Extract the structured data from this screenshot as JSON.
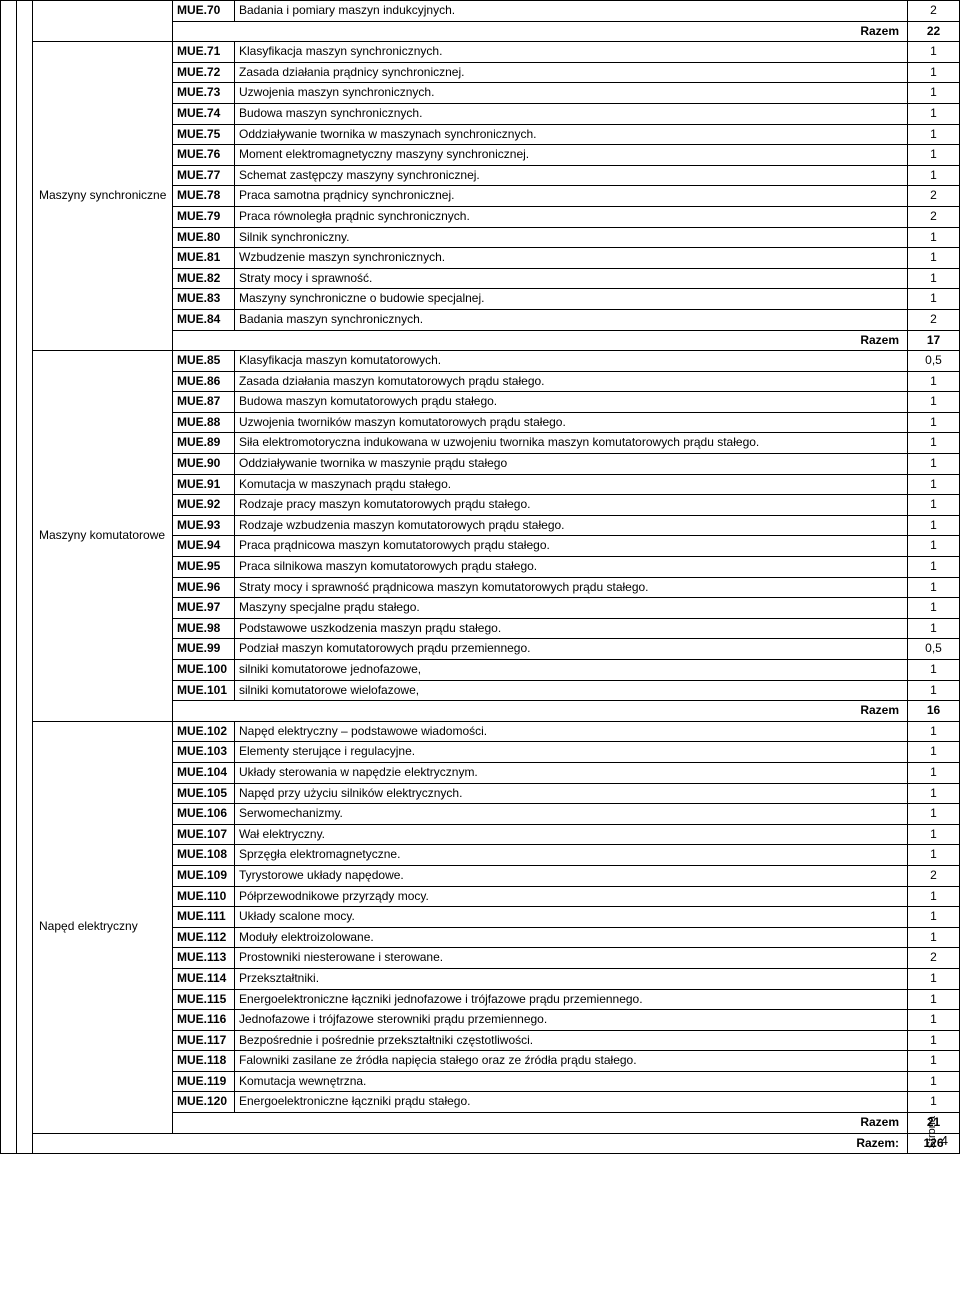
{
  "sections": [
    {
      "category": "",
      "rows": [
        {
          "code": "MUE.70",
          "desc": "Badania i pomiary maszyn indukcyjnych.",
          "val": "2"
        }
      ],
      "footer": {
        "label": "Razem",
        "val": "22"
      }
    },
    {
      "category": "Maszyny synchroniczne",
      "rows": [
        {
          "code": "MUE.71",
          "desc": "Klasyfikacja maszyn synchronicznych.",
          "val": "1"
        },
        {
          "code": "MUE.72",
          "desc": "Zasada działania prądnicy synchronicznej.",
          "val": "1"
        },
        {
          "code": "MUE.73",
          "desc": "Uzwojenia maszyn synchronicznych.",
          "val": "1"
        },
        {
          "code": "MUE.74",
          "desc": "Budowa maszyn synchronicznych.",
          "val": "1"
        },
        {
          "code": "MUE.75",
          "desc": "Oddziaływanie twornika w maszynach synchronicznych.",
          "val": "1"
        },
        {
          "code": "MUE.76",
          "desc": "Moment elektromagnetyczny maszyny synchronicznej.",
          "val": "1"
        },
        {
          "code": "MUE.77",
          "desc": "Schemat zastępczy maszyny synchronicznej.",
          "val": "1"
        },
        {
          "code": "MUE.78",
          "desc": "Praca samotna prądnicy synchronicznej.",
          "val": "2"
        },
        {
          "code": "MUE.79",
          "desc": "Praca równoległa prądnic synchronicznych.",
          "val": "2"
        },
        {
          "code": "MUE.80",
          "desc": "Silnik synchroniczny.",
          "val": "1"
        },
        {
          "code": "MUE.81",
          "desc": "Wzbudzenie maszyn synchronicznych.",
          "val": "1"
        },
        {
          "code": "MUE.82",
          "desc": "Straty mocy i sprawność.",
          "val": "1"
        },
        {
          "code": "MUE.83",
          "desc": "Maszyny synchroniczne o budowie specjalnej.",
          "val": "1"
        },
        {
          "code": "MUE.84",
          "desc": "Badania maszyn synchronicznych.",
          "val": "2"
        }
      ],
      "footer": {
        "label": "Razem",
        "val": "17"
      }
    },
    {
      "category": "Maszyny komutatorowe",
      "rows": [
        {
          "code": "MUE.85",
          "desc": "Klasyfikacja maszyn komutatorowych.",
          "val": "0,5"
        },
        {
          "code": "MUE.86",
          "desc": "Zasada działania maszyn komutatorowych prądu stałego.",
          "val": "1"
        },
        {
          "code": "MUE.87",
          "desc": "Budowa maszyn komutatorowych prądu stałego.",
          "val": "1"
        },
        {
          "code": "MUE.88",
          "desc": "Uzwojenia tworników maszyn komutatorowych prądu stałego.",
          "val": "1"
        },
        {
          "code": "MUE.89",
          "desc": "Siła elektromotoryczna indukowana w uzwojeniu twornika maszyn komutatorowych prądu stałego.",
          "val": "1"
        },
        {
          "code": "MUE.90",
          "desc": "Oddziaływanie twornika w maszynie prądu stałego",
          "val": "1"
        },
        {
          "code": "MUE.91",
          "desc": "Komutacja w maszynach prądu stałego.",
          "val": "1"
        },
        {
          "code": "MUE.92",
          "desc": "Rodzaje pracy maszyn komutatorowych prądu stałego.",
          "val": "1"
        },
        {
          "code": "MUE.93",
          "desc": "Rodzaje wzbudzenia maszyn komutatorowych prądu stałego.",
          "val": "1"
        },
        {
          "code": "MUE.94",
          "desc": "Praca prądnicowa maszyn komutatorowych prądu stałego.",
          "val": "1"
        },
        {
          "code": "MUE.95",
          "desc": "Praca silnikowa maszyn komutatorowych prądu stałego.",
          "val": "1"
        },
        {
          "code": "MUE.96",
          "desc": "Straty mocy i sprawność prądnicowa maszyn komutatorowych prądu stałego.",
          "val": "1"
        },
        {
          "code": "MUE.97",
          "desc": "Maszyny specjalne prądu stałego.",
          "val": "1"
        },
        {
          "code": "MUE.98",
          "desc": "Podstawowe uszkodzenia maszyn prądu stałego.",
          "val": "1"
        },
        {
          "code": "MUE.99",
          "desc": "Podział maszyn komutatorowych prądu przemiennego.",
          "val": "0,5"
        },
        {
          "code": "MUE.100",
          "desc": "silniki komutatorowe jednofazowe,",
          "val": "1"
        },
        {
          "code": "MUE.101",
          "desc": "silniki komutatorowe wielofazowe,",
          "val": "1"
        }
      ],
      "footer": {
        "label": "Razem",
        "val": "16"
      }
    },
    {
      "category": "Napęd elektryczny",
      "rows": [
        {
          "code": "MUE.102",
          "desc": "Napęd elektryczny – podstawowe wiadomości.",
          "val": "1"
        },
        {
          "code": "MUE.103",
          "desc": "Elementy sterujące i regulacyjne.",
          "val": "1"
        },
        {
          "code": "MUE.104",
          "desc": "Układy sterowania w napędzie elektrycznym.",
          "val": "1"
        },
        {
          "code": "MUE.105",
          "desc": "Napęd przy użyciu silników elektrycznych.",
          "val": "1"
        },
        {
          "code": "MUE.106",
          "desc": "Serwomechanizmy.",
          "val": "1"
        },
        {
          "code": "MUE.107",
          "desc": "Wał elektryczny.",
          "val": "1"
        },
        {
          "code": "MUE.108",
          "desc": "Sprzęgła elektromagnetyczne.",
          "val": "1"
        },
        {
          "code": "MUE.109",
          "desc": "Tyrystorowe układy napędowe.",
          "val": "2"
        },
        {
          "code": "MUE.110",
          "desc": "Półprzewodnikowe przyrządy mocy.",
          "val": "1"
        },
        {
          "code": "MUE.111",
          "desc": "Układy scalone mocy.",
          "val": "1"
        },
        {
          "code": "MUE.112",
          "desc": "Moduły elektroizolowane.",
          "val": "1"
        },
        {
          "code": "MUE.113",
          "desc": "Prostowniki niesterowane i sterowane.",
          "val": "2"
        },
        {
          "code": "MUE.114",
          "desc": "Przekształtniki.",
          "val": "1"
        },
        {
          "code": "MUE.115",
          "desc": "Energoelektroniczne łączniki jednofazowe i trójfazowe prądu przemiennego.",
          "val": "1"
        },
        {
          "code": "MUE.116",
          "desc": "Jednofazowe i trójfazowe sterowniki prądu przemiennego.",
          "val": "1"
        },
        {
          "code": "MUE.117",
          "desc": "Bezpośrednie i pośrednie przekształtniki częstotliwości.",
          "val": "1"
        },
        {
          "code": "MUE.118",
          "desc": "Falowniki zasilane ze źródła napięcia stałego oraz ze źródła prądu stałego.",
          "val": "1"
        },
        {
          "code": "MUE.119",
          "desc": "Komutacja wewnętrzna.",
          "val": "1"
        },
        {
          "code": "MUE.120",
          "desc": "Energoelektroniczne łączniki prądu stałego.",
          "val": "1"
        }
      ],
      "footer": {
        "label": "Razem",
        "val": "21"
      }
    }
  ],
  "grand_total": {
    "label": "Razem:",
    "val": "126"
  },
  "page": {
    "strona_label": "Strona",
    "number": "4"
  }
}
